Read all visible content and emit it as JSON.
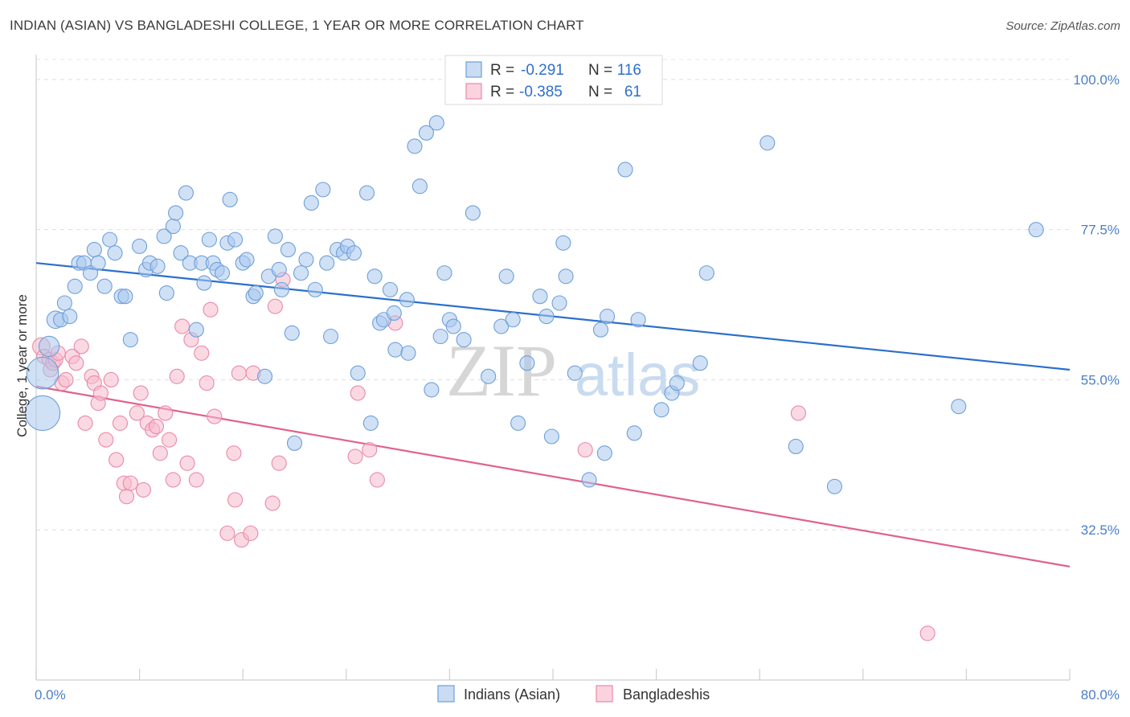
{
  "title": "INDIAN (ASIAN) VS BANGLADESHI COLLEGE, 1 YEAR OR MORE CORRELATION CHART",
  "source": "Source: ZipAtlas.com",
  "watermark": {
    "zip": "ZIP",
    "atlas": "atlas"
  },
  "colors": {
    "blue": "#a9c8ee",
    "blue_stroke": "#6f9fd8",
    "blue_line": "#2c6fcc",
    "pink": "#f7b9cc",
    "pink_stroke": "#e88aa8",
    "pink_line": "#e0628e",
    "tick_text": "#4a7fc7"
  },
  "legend": {
    "r_label": "R =",
    "n_label": "N =",
    "blue_r": "-0.291",
    "blue_n": "116",
    "pink_r": "-0.385",
    "pink_n": "61"
  },
  "bottom_legend": {
    "blue": "Indians (Asian)",
    "pink": "Bangladeshis"
  },
  "chart_data": {
    "type": "scatter",
    "title": "INDIAN (ASIAN) VS BANGLADESHI COLLEGE, 1 YEAR OR MORE CORRELATION CHART",
    "xlabel": "",
    "ylabel": "College, 1 year or more",
    "xlim": [
      0,
      80
    ],
    "ylim": [
      10,
      103
    ],
    "x_tick_labels": [
      "0.0%",
      "80.0%"
    ],
    "y_ticks": [
      32.5,
      55.0,
      77.5,
      100.0
    ],
    "y_tick_labels": [
      "32.5%",
      "55.0%",
      "77.5%",
      "100.0%"
    ],
    "series": [
      {
        "name": "Indians (Asian)",
        "trend": {
          "x": [
            0,
            80
          ],
          "y": [
            72.5,
            56.5
          ]
        },
        "points": [
          [
            0.5,
            56,
            2.2
          ],
          [
            0.5,
            50,
            2.4
          ],
          [
            1.0,
            60,
            1.4
          ],
          [
            1.5,
            64,
            1.2
          ],
          [
            1.9,
            64,
            1
          ],
          [
            2.6,
            64.5,
            1
          ],
          [
            2.2,
            66.5,
            1
          ],
          [
            3.0,
            69,
            1
          ],
          [
            3.3,
            72.5,
            1
          ],
          [
            3.7,
            72.5,
            1
          ],
          [
            4.2,
            71,
            1
          ],
          [
            4.5,
            74.5,
            1
          ],
          [
            4.8,
            72.5,
            1
          ],
          [
            5.3,
            69,
            1
          ],
          [
            5.7,
            76,
            1
          ],
          [
            6.1,
            74,
            1
          ],
          [
            6.6,
            67.5,
            1
          ],
          [
            6.9,
            67.5,
            1
          ],
          [
            7.3,
            61,
            1
          ],
          [
            8.0,
            75,
            1
          ],
          [
            8.5,
            71.5,
            1
          ],
          [
            8.8,
            72.5,
            1
          ],
          [
            9.4,
            72,
            1
          ],
          [
            9.9,
            76.5,
            1
          ],
          [
            10.1,
            68,
            1
          ],
          [
            10.6,
            78,
            1
          ],
          [
            10.8,
            80,
            1
          ],
          [
            11.2,
            74,
            1
          ],
          [
            11.6,
            83,
            1
          ],
          [
            11.9,
            72.5,
            1
          ],
          [
            12.4,
            62.5,
            1
          ],
          [
            12.8,
            72.5,
            1
          ],
          [
            13.0,
            69.5,
            1
          ],
          [
            13.4,
            76,
            1
          ],
          [
            13.7,
            72.5,
            1
          ],
          [
            14.0,
            71.5,
            1
          ],
          [
            14.4,
            71,
            1
          ],
          [
            14.8,
            75.5,
            1
          ],
          [
            15.0,
            82,
            1
          ],
          [
            15.4,
            76,
            1
          ],
          [
            16.0,
            72.5,
            1
          ],
          [
            16.3,
            73,
            1
          ],
          [
            16.8,
            67.5,
            1
          ],
          [
            17.0,
            68,
            1
          ],
          [
            17.7,
            55.5,
            1
          ],
          [
            18.0,
            70.5,
            1
          ],
          [
            18.5,
            76.5,
            1
          ],
          [
            18.8,
            71.5,
            1
          ],
          [
            19.0,
            68.5,
            1
          ],
          [
            19.5,
            74.5,
            1
          ],
          [
            19.8,
            62,
            1
          ],
          [
            20.0,
            45.5,
            1
          ],
          [
            20.5,
            71,
            1
          ],
          [
            20.9,
            73,
            1
          ],
          [
            21.3,
            81.5,
            1
          ],
          [
            21.6,
            68.5,
            1
          ],
          [
            22.2,
            83.5,
            1
          ],
          [
            22.5,
            72.5,
            1
          ],
          [
            22.8,
            61.5,
            1
          ],
          [
            23.3,
            74.5,
            1
          ],
          [
            23.8,
            74,
            1
          ],
          [
            24.1,
            75,
            1
          ],
          [
            24.6,
            74,
            1
          ],
          [
            24.9,
            56,
            1
          ],
          [
            25.6,
            83,
            1
          ],
          [
            25.9,
            48.5,
            1
          ],
          [
            26.2,
            70.5,
            1
          ],
          [
            26.6,
            63.5,
            1
          ],
          [
            26.9,
            64,
            1
          ],
          [
            27.4,
            68.5,
            1
          ],
          [
            27.7,
            65,
            1
          ],
          [
            27.8,
            59.5,
            1
          ],
          [
            28.7,
            67,
            1
          ],
          [
            28.8,
            59,
            1
          ],
          [
            29.3,
            90,
            1
          ],
          [
            29.7,
            84,
            1
          ],
          [
            30.2,
            92,
            1
          ],
          [
            30.6,
            53.5,
            1
          ],
          [
            31.0,
            93.5,
            1
          ],
          [
            31.3,
            61.5,
            1
          ],
          [
            31.6,
            71,
            1
          ],
          [
            32.0,
            64,
            1
          ],
          [
            32.3,
            63,
            1
          ],
          [
            33.1,
            61,
            1
          ],
          [
            33.8,
            80,
            1
          ],
          [
            35.0,
            55.5,
            1
          ],
          [
            36.0,
            63,
            1
          ],
          [
            36.4,
            70.5,
            1
          ],
          [
            36.9,
            64,
            1
          ],
          [
            37.3,
            48.5,
            1
          ],
          [
            38.0,
            57.5,
            1
          ],
          [
            39.0,
            67.5,
            1
          ],
          [
            39.5,
            64.5,
            1
          ],
          [
            39.9,
            46.5,
            1
          ],
          [
            40.5,
            66.5,
            1
          ],
          [
            40.8,
            75.5,
            1
          ],
          [
            41.0,
            70.5,
            1
          ],
          [
            41.7,
            56,
            1
          ],
          [
            42.8,
            40,
            1
          ],
          [
            43.7,
            62.5,
            1
          ],
          [
            44.0,
            44,
            1
          ],
          [
            44.2,
            64.5,
            1
          ],
          [
            45.6,
            86.5,
            1
          ],
          [
            46.3,
            47,
            1
          ],
          [
            46.6,
            64,
            1
          ],
          [
            48.4,
            50.5,
            1
          ],
          [
            49.2,
            53,
            1
          ],
          [
            49.6,
            54.5,
            1
          ],
          [
            51.4,
            57.5,
            1
          ],
          [
            51.9,
            71,
            1
          ],
          [
            56.6,
            90.5,
            1
          ],
          [
            58.8,
            45,
            1
          ],
          [
            61.8,
            39,
            1
          ],
          [
            71.4,
            51,
            1
          ],
          [
            77.4,
            77.5,
            1
          ]
        ]
      },
      {
        "name": "Bangladeshis",
        "trend": {
          "x": [
            0,
            80
          ],
          "y": [
            54,
            27
          ]
        },
        "points": [
          [
            0.4,
            60,
            1.2
          ],
          [
            0.6,
            58.5,
            1
          ],
          [
            1.0,
            58,
            1
          ],
          [
            1.1,
            56.5,
            1
          ],
          [
            1.3,
            57.5,
            1
          ],
          [
            1.5,
            58,
            1
          ],
          [
            1.7,
            59,
            1
          ],
          [
            2.0,
            54.5,
            1
          ],
          [
            2.3,
            55,
            1
          ],
          [
            2.8,
            58.5,
            1
          ],
          [
            3.1,
            57.5,
            1
          ],
          [
            3.5,
            60,
            1
          ],
          [
            3.8,
            48.5,
            1
          ],
          [
            4.3,
            55.5,
            1
          ],
          [
            4.5,
            54.5,
            1
          ],
          [
            4.8,
            51.5,
            1
          ],
          [
            5.0,
            53,
            1
          ],
          [
            5.4,
            46,
            1
          ],
          [
            5.8,
            55,
            1
          ],
          [
            6.2,
            43,
            1
          ],
          [
            6.5,
            48.5,
            1
          ],
          [
            6.8,
            39.5,
            1
          ],
          [
            7.0,
            37.5,
            1
          ],
          [
            7.3,
            39.5,
            1
          ],
          [
            7.8,
            50,
            1
          ],
          [
            8.1,
            53,
            1
          ],
          [
            8.3,
            38.5,
            1
          ],
          [
            8.6,
            48.5,
            1
          ],
          [
            9.0,
            47.5,
            1
          ],
          [
            9.3,
            48,
            1
          ],
          [
            9.6,
            44,
            1
          ],
          [
            10.0,
            50,
            1
          ],
          [
            10.3,
            46,
            1
          ],
          [
            10.6,
            40,
            1
          ],
          [
            10.9,
            55.5,
            1
          ],
          [
            11.3,
            63,
            1
          ],
          [
            11.7,
            42.5,
            1
          ],
          [
            12.0,
            61,
            1
          ],
          [
            12.4,
            40,
            1
          ],
          [
            12.8,
            59,
            1
          ],
          [
            13.2,
            54.5,
            1
          ],
          [
            13.5,
            65.5,
            1
          ],
          [
            13.8,
            49.5,
            1
          ],
          [
            14.8,
            32,
            1
          ],
          [
            15.3,
            44,
            1
          ],
          [
            15.4,
            37,
            1
          ],
          [
            15.7,
            56,
            1
          ],
          [
            15.9,
            31,
            1
          ],
          [
            16.6,
            32,
            1
          ],
          [
            16.8,
            56,
            1
          ],
          [
            18.3,
            36.5,
            1
          ],
          [
            18.5,
            66,
            1
          ],
          [
            18.8,
            42.5,
            1
          ],
          [
            19.1,
            70,
            1
          ],
          [
            24.7,
            43.5,
            1
          ],
          [
            24.9,
            53,
            1
          ],
          [
            25.8,
            44.5,
            1
          ],
          [
            26.4,
            40,
            1
          ],
          [
            27.8,
            63.5,
            1
          ],
          [
            42.5,
            44.5,
            1
          ],
          [
            59.0,
            50,
            1
          ],
          [
            69.0,
            17,
            1
          ]
        ]
      }
    ]
  }
}
